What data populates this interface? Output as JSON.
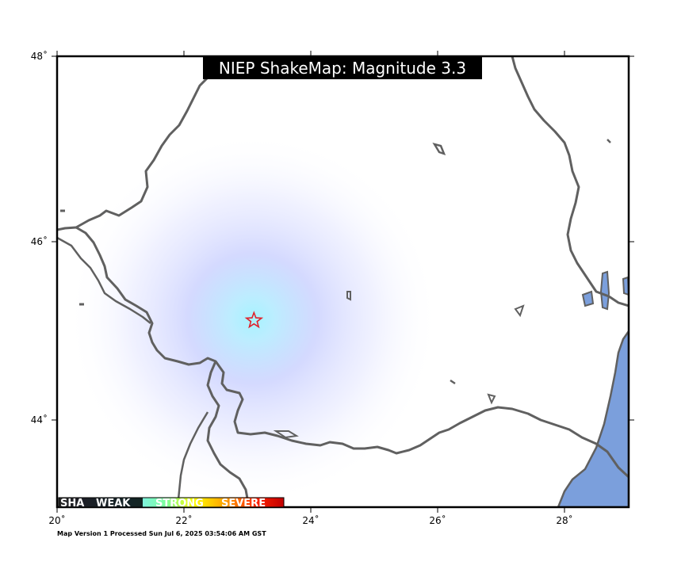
{
  "map": {
    "title": "NIEP ShakeMap: Magnitude 3.3",
    "footer": "Map Version 1 Processed Sun Jul  6, 2025 03:54:06 AM GST",
    "epicenter": {
      "lon": 23.1,
      "lat": 45.15
    },
    "lon_range": [
      20,
      29
    ],
    "lat_range": [
      43.0,
      48.0
    ],
    "x_ticks": [
      "20˚",
      "22˚",
      "24˚",
      "26˚",
      "28˚"
    ],
    "y_ticks": [
      "48˚",
      "46˚",
      "44˚"
    ],
    "legend": {
      "labels": [
        "SHAKING:",
        "WEAK",
        "STRONG",
        "SEVERE"
      ],
      "display": [
        "SHA",
        "WEAK",
        "STRONG",
        "SEVERE"
      ]
    },
    "colors": {
      "border": "#606060",
      "water": "#7b9fdc",
      "shaking_weak": "#c8d0ff",
      "shaking_center": "#a0f0ff",
      "epicenter_star": "#e0202a"
    }
  }
}
